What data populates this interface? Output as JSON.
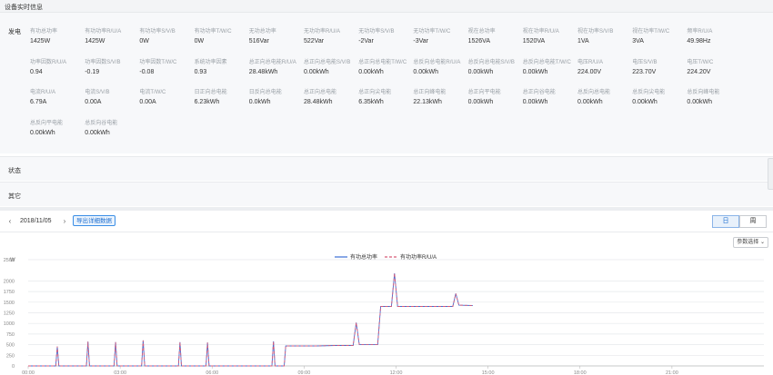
{
  "header": {
    "title": "设备实时信息"
  },
  "realtime": {
    "section_label": "发电",
    "rows": [
      [
        {
          "label": "有功总功率",
          "value": "1425W"
        },
        {
          "label": "有功功率R/U/A",
          "value": "1425W"
        },
        {
          "label": "有功功率S/V/B",
          "value": "0W"
        },
        {
          "label": "有功功率T/W/C",
          "value": "0W"
        },
        {
          "label": "无功总功率",
          "value": "516Var"
        },
        {
          "label": "无功功率R/U/A",
          "value": "522Var"
        },
        {
          "label": "无功功率S/V/B",
          "value": "-2Var"
        },
        {
          "label": "无功功率T/W/C",
          "value": "-3Var"
        },
        {
          "label": "视在总功率",
          "value": "1526VA"
        },
        {
          "label": "视在功率R/U/A",
          "value": "1520VA"
        },
        {
          "label": "视在功率S/V/B",
          "value": "1VA"
        },
        {
          "label": "视在功率T/W/C",
          "value": "3VA"
        },
        {
          "label": "频率R/U/A",
          "value": "49.98Hz"
        }
      ],
      [
        {
          "label": "功率因数R/U/A",
          "value": "0.94"
        },
        {
          "label": "功率因数S/V/B",
          "value": "-0.19"
        },
        {
          "label": "功率因数T/W/C",
          "value": "-0.08"
        },
        {
          "label": "系统功率因素",
          "value": "0.93"
        },
        {
          "label": "总正向总电能R/U/A",
          "value": "28.48kWh"
        },
        {
          "label": "总正向总电能S/V/B",
          "value": "0.00kWh"
        },
        {
          "label": "总正向总电能T/W/C",
          "value": "0.00kWh"
        },
        {
          "label": "总反向总电能R/U/A",
          "value": "0.00kWh"
        },
        {
          "label": "总反向总电能S/V/B",
          "value": "0.00kWh"
        },
        {
          "label": "总反向总电能T/W/C",
          "value": "0.00kWh"
        },
        {
          "label": "电压R/U/A",
          "value": "224.00V"
        },
        {
          "label": "电压S/V/B",
          "value": "223.70V"
        },
        {
          "label": "电压T/W/C",
          "value": "224.20V"
        }
      ],
      [
        {
          "label": "电流R/U/A",
          "value": "6.79A"
        },
        {
          "label": "电流S/V/B",
          "value": "0.00A"
        },
        {
          "label": "电流T/W/C",
          "value": "0.00A"
        },
        {
          "label": "日正向总电能",
          "value": "6.23kWh"
        },
        {
          "label": "日反向总电能",
          "value": "0.0kWh"
        },
        {
          "label": "总正向总电能",
          "value": "28.48kWh"
        },
        {
          "label": "总正向尖电能",
          "value": "6.35kWh"
        },
        {
          "label": "总正向峰电能",
          "value": "22.13kWh"
        },
        {
          "label": "总正向平电能",
          "value": "0.00kWh"
        },
        {
          "label": "总正向谷电能",
          "value": "0.00kWh"
        },
        {
          "label": "总反向总电能",
          "value": "0.00kWh"
        },
        {
          "label": "总反向尖电能",
          "value": "0.00kWh"
        },
        {
          "label": "总反向峰电能",
          "value": "0.00kWh"
        }
      ],
      [
        {
          "label": "总反向平电能",
          "value": "0.00kWh"
        },
        {
          "label": "总反向谷电能",
          "value": "0.00kWh"
        }
      ]
    ]
  },
  "sections": {
    "status": "状态",
    "other": "其它"
  },
  "toolbar": {
    "prev": "‹",
    "next": "›",
    "date": "2018/11/05",
    "export_label": "导出详细数据",
    "tab_day": "日",
    "tab_week": "周",
    "param_select": "参数选择"
  },
  "colors": {
    "series1": "#3b6fd6",
    "series2": "#d85a78",
    "grid": "#e6e8eb"
  },
  "chart_data": {
    "type": "line",
    "ylabel": "W",
    "ylim": [
      0,
      2500
    ],
    "yticks": [
      0,
      250,
      500,
      750,
      1000,
      1250,
      1500,
      1750,
      2000,
      2500
    ],
    "xticks": [
      "00:00",
      "03:00",
      "06:00",
      "09:00",
      "12:00",
      "15:00",
      "18:00",
      "21:00"
    ],
    "xlim_hours": [
      0,
      24
    ],
    "series": [
      {
        "name": "有功总功率",
        "style": "solid",
        "points": [
          [
            0,
            0
          ],
          [
            0.9,
            0
          ],
          [
            0.95,
            460
          ],
          [
            1.0,
            0
          ],
          [
            1.9,
            0
          ],
          [
            1.95,
            570
          ],
          [
            2.0,
            0
          ],
          [
            2.8,
            0
          ],
          [
            2.85,
            560
          ],
          [
            2.9,
            0
          ],
          [
            3.7,
            0
          ],
          [
            3.75,
            600
          ],
          [
            3.8,
            0
          ],
          [
            4.9,
            0
          ],
          [
            4.95,
            560
          ],
          [
            5.0,
            0
          ],
          [
            5.8,
            0
          ],
          [
            5.85,
            550
          ],
          [
            5.9,
            0
          ],
          [
            7.95,
            0
          ],
          [
            8.0,
            580
          ],
          [
            8.05,
            0
          ],
          [
            8.35,
            0
          ],
          [
            8.4,
            470
          ],
          [
            9.4,
            470
          ],
          [
            10.0,
            480
          ],
          [
            10.6,
            480
          ],
          [
            10.7,
            1020
          ],
          [
            10.8,
            500
          ],
          [
            11.4,
            500
          ],
          [
            11.5,
            1400
          ],
          [
            11.85,
            1400
          ],
          [
            11.95,
            2180
          ],
          [
            12.05,
            1400
          ],
          [
            13.85,
            1400
          ],
          [
            13.95,
            1700
          ],
          [
            14.05,
            1430
          ],
          [
            14.5,
            1420
          ]
        ]
      },
      {
        "name": "有功功率R/U/A",
        "style": "dashed",
        "points": [
          [
            0,
            0
          ],
          [
            0.9,
            0
          ],
          [
            0.95,
            460
          ],
          [
            1.0,
            0
          ],
          [
            1.9,
            0
          ],
          [
            1.95,
            570
          ],
          [
            2.0,
            0
          ],
          [
            2.8,
            0
          ],
          [
            2.85,
            560
          ],
          [
            2.9,
            0
          ],
          [
            3.7,
            0
          ],
          [
            3.75,
            600
          ],
          [
            3.8,
            0
          ],
          [
            4.9,
            0
          ],
          [
            4.95,
            560
          ],
          [
            5.0,
            0
          ],
          [
            5.8,
            0
          ],
          [
            5.85,
            550
          ],
          [
            5.9,
            0
          ],
          [
            7.95,
            0
          ],
          [
            8.0,
            580
          ],
          [
            8.05,
            0
          ],
          [
            8.35,
            0
          ],
          [
            8.4,
            470
          ],
          [
            9.4,
            470
          ],
          [
            10.0,
            480
          ],
          [
            10.6,
            480
          ],
          [
            10.7,
            1020
          ],
          [
            10.8,
            500
          ],
          [
            11.4,
            500
          ],
          [
            11.5,
            1400
          ],
          [
            11.85,
            1400
          ],
          [
            11.95,
            2180
          ],
          [
            12.05,
            1400
          ],
          [
            13.85,
            1400
          ],
          [
            13.95,
            1700
          ],
          [
            14.05,
            1430
          ],
          [
            14.5,
            1420
          ]
        ]
      }
    ]
  }
}
